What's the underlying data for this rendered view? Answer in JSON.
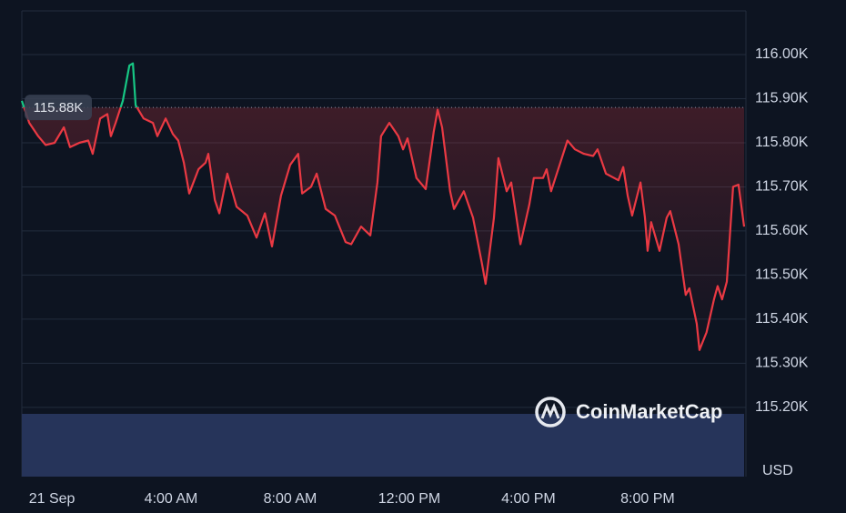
{
  "chart_data": {
    "type": "line",
    "watermark": "CoinMarketCap",
    "y_unit_label": "USD",
    "baseline": {
      "value": 115880,
      "label": "115.88K"
    },
    "up_color": "#16c784",
    "down_color": "#ea3943",
    "xlim": [
      -1.01,
      23.24
    ],
    "xticks": [
      {
        "value": 0,
        "label": "21 Sep"
      },
      {
        "value": 4,
        "label": "4:00 AM"
      },
      {
        "value": 8,
        "label": "8:00 AM"
      },
      {
        "value": 12,
        "label": "12:00 PM"
      },
      {
        "value": 16,
        "label": "4:00 PM"
      },
      {
        "value": 20,
        "label": "8:00 PM"
      }
    ],
    "ylim": [
      115043,
      116100
    ],
    "yticks": [
      {
        "value": 115200,
        "label": "115.20K"
      },
      {
        "value": 115300,
        "label": "115.30K"
      },
      {
        "value": 115400,
        "label": "115.40K"
      },
      {
        "value": 115500,
        "label": "115.50K"
      },
      {
        "value": 115600,
        "label": "115.60K"
      },
      {
        "value": 115700,
        "label": "115.70K"
      },
      {
        "value": 115800,
        "label": "115.80K"
      },
      {
        "value": 115900,
        "label": "115.90K"
      },
      {
        "value": 116000,
        "label": "116.00K"
      }
    ],
    "grid": true,
    "x": [
      -1.01,
      -0.76,
      -0.46,
      -0.21,
      0.09,
      0.4,
      0.61,
      0.92,
      1.22,
      1.37,
      1.62,
      1.86,
      1.98,
      2.14,
      2.38,
      2.6,
      2.72,
      2.81,
      3.08,
      3.39,
      3.54,
      3.82,
      4.06,
      4.24,
      4.43,
      4.61,
      4.92,
      5.16,
      5.25,
      5.47,
      5.62,
      5.89,
      6.2,
      6.56,
      6.87,
      7.15,
      7.39,
      7.69,
      8.0,
      8.27,
      8.4,
      8.7,
      8.89,
      9.19,
      9.5,
      9.86,
      10.05,
      10.38,
      10.69,
      10.93,
      11.05,
      11.33,
      11.63,
      11.79,
      11.94,
      12.24,
      12.55,
      12.82,
      12.95,
      13.1,
      13.37,
      13.5,
      13.83,
      14.14,
      14.44,
      14.56,
      14.84,
      14.99,
      15.27,
      15.42,
      15.73,
      16.03,
      16.18,
      16.49,
      16.61,
      16.76,
      17.07,
      17.31,
      17.56,
      17.86,
      18.17,
      18.32,
      18.6,
      19.02,
      19.18,
      19.33,
      19.48,
      19.76,
      19.91,
      20.0,
      20.12,
      20.4,
      20.64,
      20.76,
      21.04,
      21.28,
      21.4,
      21.65,
      21.74,
      21.98,
      22.23,
      22.35,
      22.5,
      22.66,
      22.87,
      23.05,
      23.24
    ],
    "values": [
      115895,
      115845,
      115815,
      115795,
      115800,
      115835,
      115790,
      115800,
      115805,
      115775,
      115855,
      115865,
      115815,
      115845,
      115895,
      115975,
      115980,
      115885,
      115855,
      115845,
      115815,
      115855,
      115820,
      115805,
      115755,
      115685,
      115740,
      115755,
      115775,
      115670,
      115640,
      115730,
      115655,
      115635,
      115585,
      115640,
      115565,
      115680,
      115750,
      115775,
      115685,
      115700,
      115730,
      115650,
      115635,
      115575,
      115570,
      115610,
      115590,
      115710,
      115815,
      115845,
      115815,
      115785,
      115810,
      115720,
      115695,
      115825,
      115875,
      115835,
      115690,
      115650,
      115690,
      115630,
      115525,
      115480,
      115630,
      115765,
      115690,
      115710,
      115570,
      115660,
      115720,
      115720,
      115740,
      115690,
      115755,
      115805,
      115785,
      115775,
      115770,
      115785,
      115730,
      115715,
      115745,
      115680,
      115635,
      115710,
      115630,
      115555,
      115620,
      115555,
      115630,
      115645,
      115570,
      115455,
      115470,
      115390,
      115330,
      115370,
      115445,
      115475,
      115445,
      115485,
      115700,
      115705,
      115610
    ]
  }
}
